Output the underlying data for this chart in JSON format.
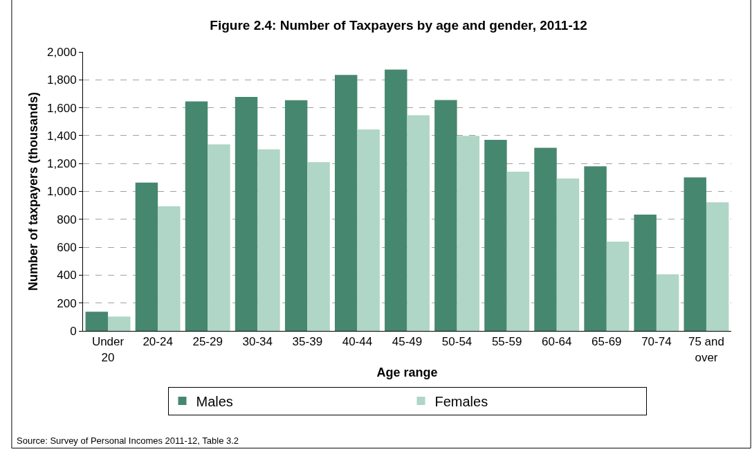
{
  "chart_data": {
    "type": "bar",
    "title": "Figure 2.4: Number of Taxpayers by age and gender, 2011-12",
    "xlabel": "Age range",
    "ylabel": "Number of taxpayers (thousands)",
    "categories": [
      "Under 20",
      "20-24",
      "25-29",
      "30-34",
      "35-39",
      "40-44",
      "45-49",
      "50-54",
      "55-59",
      "60-64",
      "65-69",
      "70-74",
      "75 and over"
    ],
    "series": [
      {
        "name": "Males",
        "color": "#468770",
        "values": [
          138,
          1063,
          1645,
          1678,
          1654,
          1835,
          1873,
          1655,
          1370,
          1313,
          1180,
          834,
          1101
        ]
      },
      {
        "name": "Females",
        "color": "#afd6c6",
        "values": [
          103,
          893,
          1337,
          1302,
          1210,
          1444,
          1546,
          1398,
          1142,
          1093,
          640,
          406,
          922
        ]
      }
    ],
    "ylim": [
      0,
      2000
    ],
    "yticks": [
      {
        "value": 0,
        "label": "0"
      },
      {
        "value": 200,
        "label": "200"
      },
      {
        "value": 400,
        "label": "400"
      },
      {
        "value": 600,
        "label": "600"
      },
      {
        "value": 800,
        "label": "800"
      },
      {
        "value": 1000,
        "label": "1,000"
      },
      {
        "value": 1200,
        "label": "1,200"
      },
      {
        "value": 1400,
        "label": "1,400"
      },
      {
        "value": 1600,
        "label": "1,600"
      },
      {
        "value": 1800,
        "label": "1,800"
      },
      {
        "value": 2000,
        "label": "2,000"
      }
    ],
    "grid": "y",
    "legend": "bottom",
    "annotations": [
      "Source: Survey of Personal Incomes 2011-12, Table 3.2"
    ]
  }
}
